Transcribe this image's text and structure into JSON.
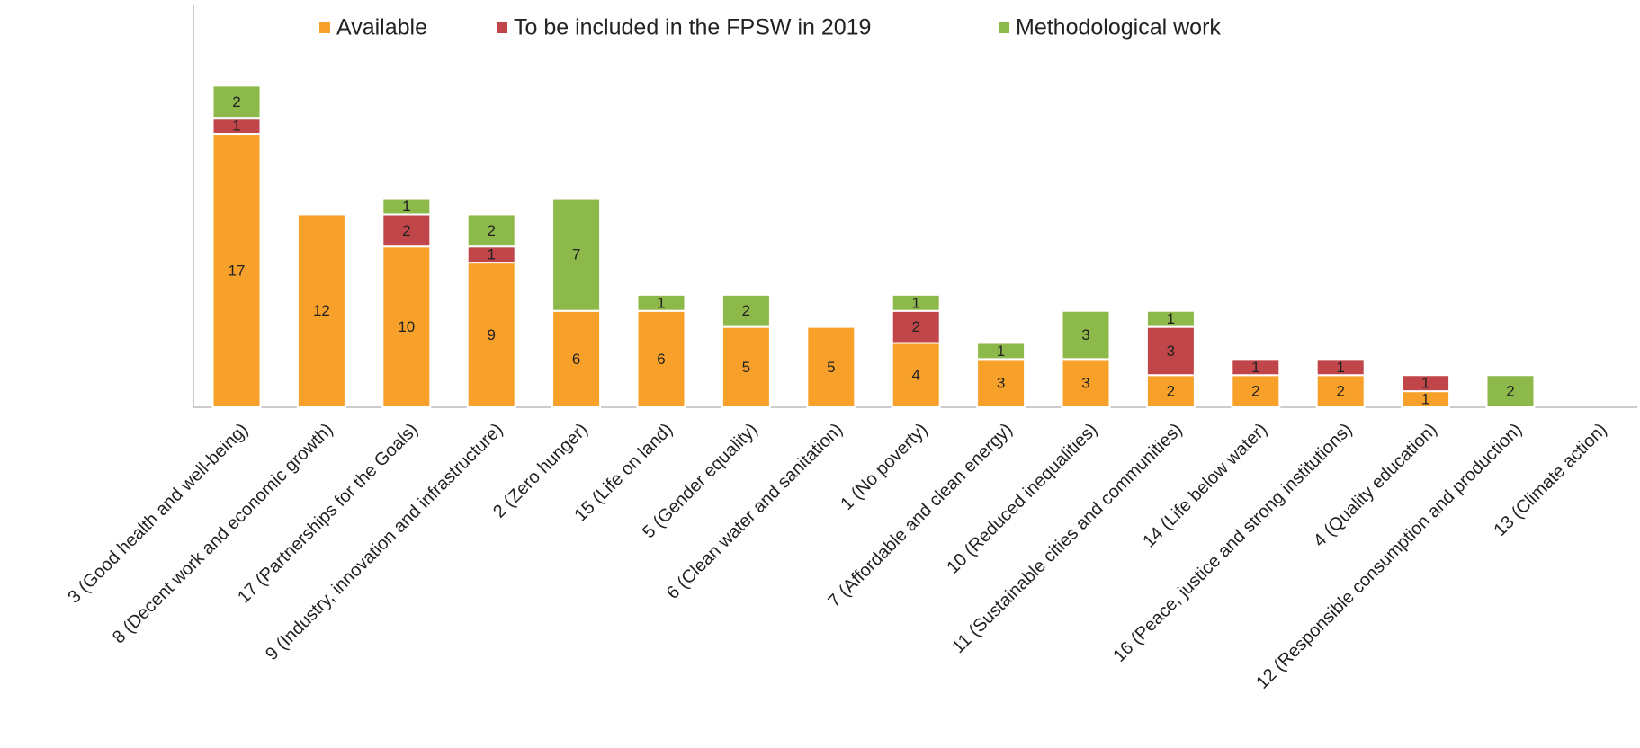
{
  "chart_data": {
    "type": "stacked-bar",
    "categories": [
      "3 (Good health and well-being)",
      "8 (Decent work and economic growth)",
      "17 (Partnerships for the Goals)",
      "9 (Industry, innovation and infrastructure)",
      "2 (Zero hunger)",
      "15 (Life on land)",
      "5 (Gender equality)",
      "6 (Clean water and sanitation)",
      "1 (No poverty)",
      "7 (Affordable and clean energy)",
      "10 (Reduced inequalities)",
      "11 (Sustainable cities and communities)",
      "14 (Life below water)",
      "16 (Peace, justice and strong institutions)",
      "4 (Quality education)",
      "12 (Responsible consumption and production)",
      "13 (Climate action)"
    ],
    "series": [
      {
        "name": "Available",
        "color": "#f7a12b",
        "values": [
          17,
          12,
          10,
          9,
          6,
          6,
          5,
          5,
          4,
          3,
          3,
          2,
          2,
          2,
          1,
          0,
          0
        ]
      },
      {
        "name": "To be included in the FPSW in 2019",
        "color": "#c0464a",
        "values": [
          1,
          0,
          2,
          1,
          0,
          0,
          0,
          0,
          2,
          0,
          0,
          3,
          1,
          1,
          1,
          0,
          0
        ]
      },
      {
        "name": "Methodological work",
        "color": "#8db84a",
        "values": [
          2,
          0,
          1,
          2,
          7,
          1,
          2,
          0,
          1,
          1,
          3,
          1,
          0,
          0,
          0,
          2,
          0
        ]
      }
    ],
    "ylim": [
      0,
      25
    ],
    "legend": "top"
  }
}
